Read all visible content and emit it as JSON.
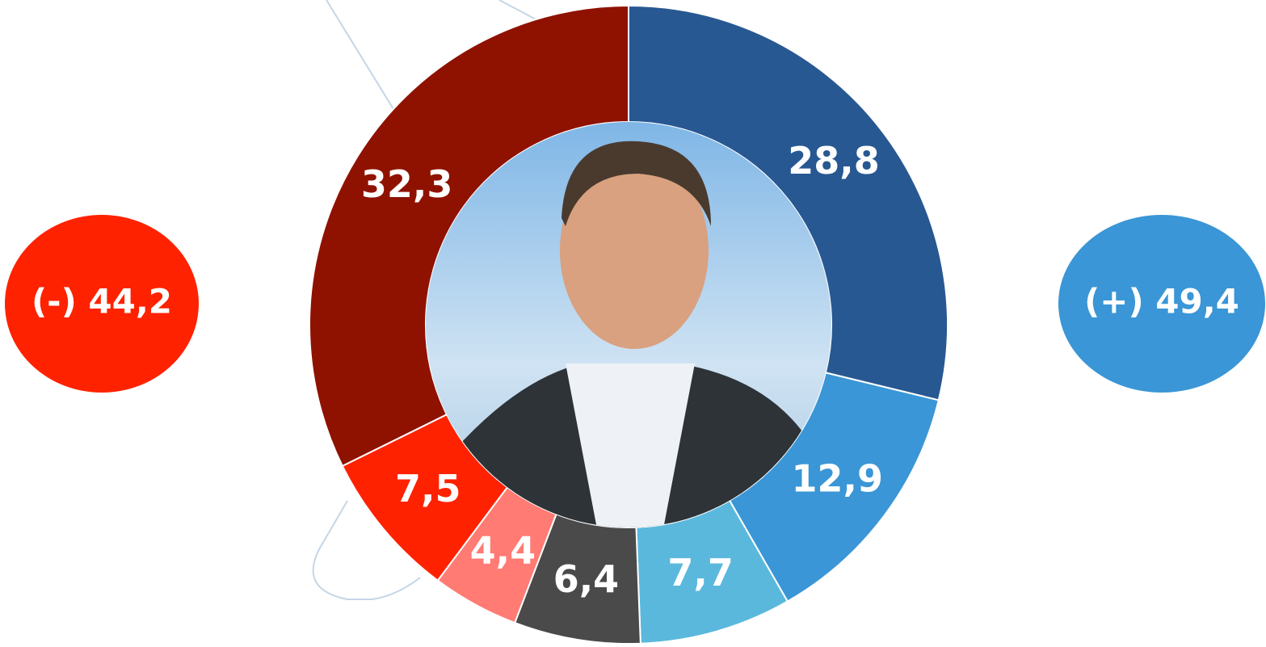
{
  "chart_data": {
    "type": "donut",
    "values": [
      28.8,
      12.9,
      7.7,
      6.4,
      4.4,
      7.5,
      32.3
    ],
    "value_labels": [
      "28,8",
      "12,9",
      "7,7",
      "6,4",
      "4,4",
      "7,5",
      "32,3"
    ],
    "colors": [
      "#285892",
      "#3a96d6",
      "#5bb8dd",
      "#4a4a4a",
      "#ff7b73",
      "#ff2200",
      "#8f1200"
    ],
    "annotations": [
      {
        "value": 44.2,
        "label": "(-) 44,2",
        "color": "#ff2200"
      },
      {
        "value": 49.4,
        "label": "(+) 49,4",
        "color": "#3a96d6"
      }
    ]
  }
}
